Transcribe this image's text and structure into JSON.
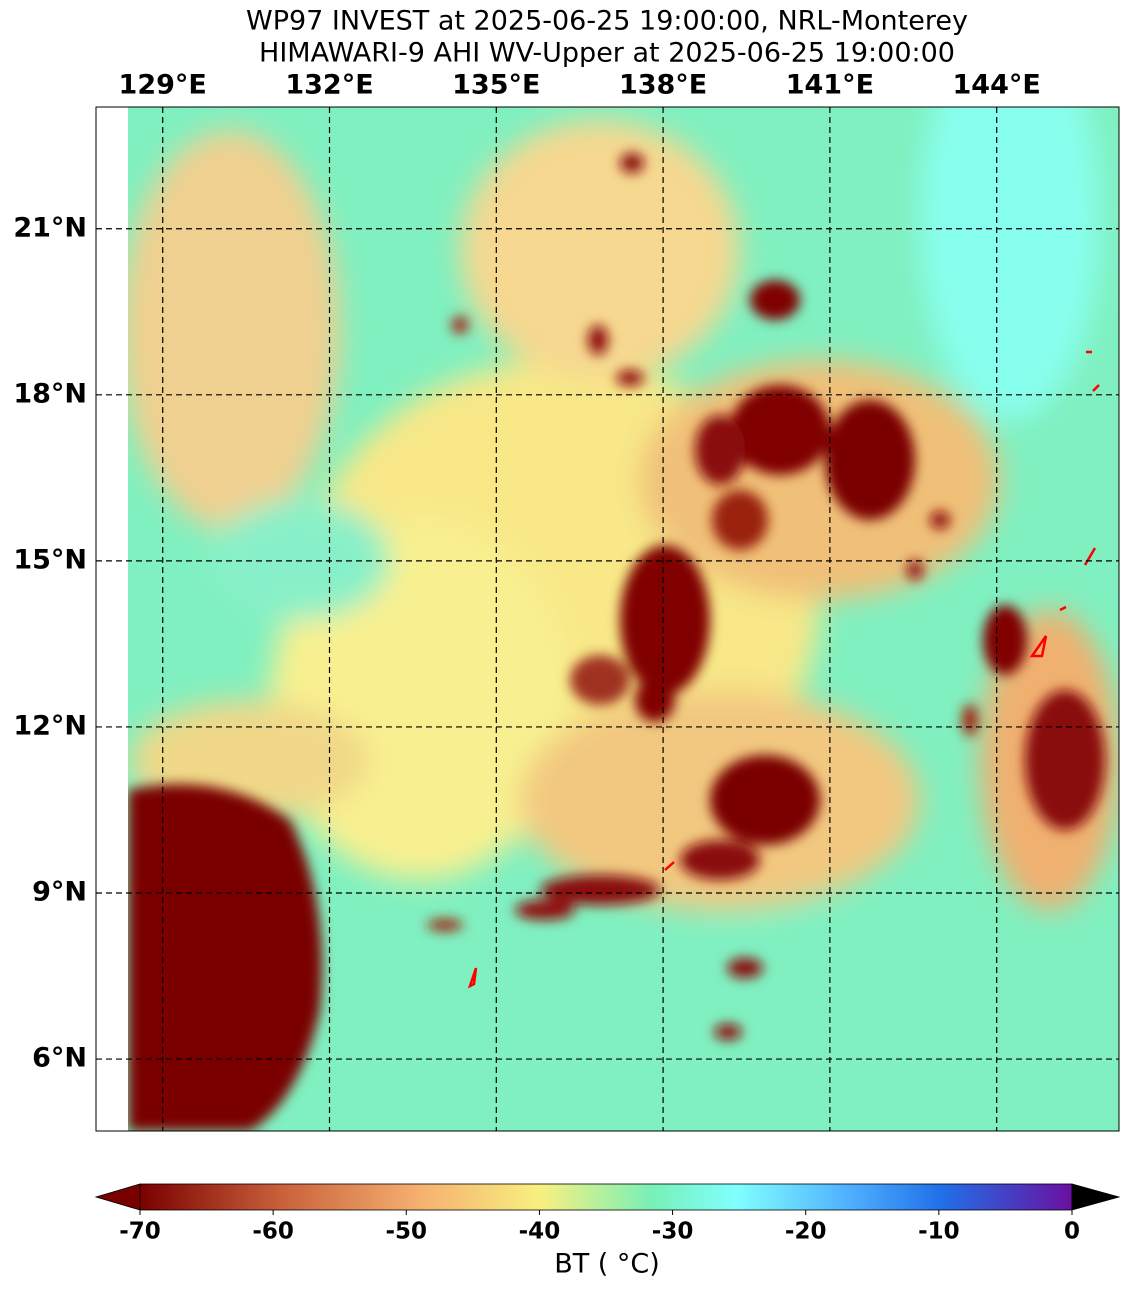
{
  "map": {
    "title": [
      "WP97 INVEST at 2025-06-25 19:00:00, NRL-Monterey",
      "HIMAWARI-9 AHI WV-Upper at 2025-06-25 19:00:00"
    ],
    "xlim": [
      127.8,
      146.2
    ],
    "ylim": [
      4.7,
      23.2
    ],
    "xticks": [
      {
        "value": 129,
        "label": "129°E"
      },
      {
        "value": 132,
        "label": "132°E"
      },
      {
        "value": 135,
        "label": "135°E"
      },
      {
        "value": 138,
        "label": "138°E"
      },
      {
        "value": 141,
        "label": "141°E"
      },
      {
        "value": 144,
        "label": "144°E"
      }
    ],
    "yticks": [
      {
        "value": 6,
        "label": "6°N"
      },
      {
        "value": 9,
        "label": "9°N"
      },
      {
        "value": 12,
        "label": "12°N"
      },
      {
        "value": 15,
        "label": "15°N"
      },
      {
        "value": 18,
        "label": "18°N"
      },
      {
        "value": 21,
        "label": "21°N"
      }
    ],
    "grid": true,
    "colorbar": {
      "label": "BT ( °C)",
      "lim": [
        -70,
        0
      ],
      "ticks": [
        -70,
        -60,
        -50,
        -40,
        -30,
        -20,
        -10,
        0
      ]
    }
  }
}
